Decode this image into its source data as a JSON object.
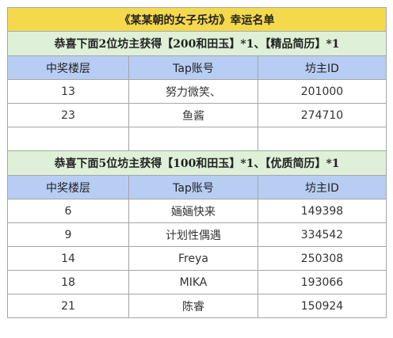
{
  "title": "《某某朝的女子乐坊》幸运名单",
  "columns": [
    "中奖楼层",
    "Tap账号",
    "坊主ID"
  ],
  "colors": {
    "title_bg": "#f5d94d",
    "section_bg": "#dff0d8",
    "header_bg": "#b7cdf3",
    "border": "#a6a6a6"
  },
  "sections": [
    {
      "heading": "恭喜下面2位坊主获得【200和田玉】*1、【精品简历】*1",
      "rows": [
        {
          "floor": "13",
          "account": "努力微笑、",
          "id": "201000"
        },
        {
          "floor": "23",
          "account": "鱼酱",
          "id": "274710"
        }
      ]
    },
    {
      "heading": "恭喜下面5位坊主获得【100和田玉】*1、【优质简历】*1",
      "rows": [
        {
          "floor": "6",
          "account": "婳婳快来",
          "id": "149398"
        },
        {
          "floor": "9",
          "account": "计划性偶遇",
          "id": "334542"
        },
        {
          "floor": "14",
          "account": "Freya",
          "id": "250308"
        },
        {
          "floor": "18",
          "account": "MIKA",
          "id": "193066"
        },
        {
          "floor": "21",
          "account": "陈睿",
          "id": "150924"
        }
      ]
    }
  ]
}
